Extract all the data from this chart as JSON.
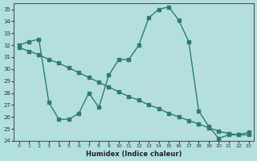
{
  "xlabel": "Humidex (Indice chaleur)",
  "line1_x": [
    0,
    1,
    2,
    3,
    4,
    5,
    6,
    7,
    8,
    9,
    10,
    11,
    12,
    13,
    14,
    15,
    16,
    17,
    18,
    19,
    20,
    21,
    22,
    23
  ],
  "line1_y": [
    32.0,
    32.3,
    32.5,
    27.2,
    25.8,
    25.8,
    26.3,
    28.0,
    26.8,
    29.5,
    30.8,
    30.8,
    32.0,
    34.3,
    35.0,
    35.2,
    34.1,
    32.3,
    26.5,
    25.2,
    24.2,
    24.5,
    24.5,
    24.7
  ],
  "line2_x": [
    0,
    1,
    2,
    3,
    4,
    5,
    6,
    7,
    8,
    9,
    10,
    11,
    12,
    13,
    14,
    15,
    16,
    17,
    18,
    19,
    20,
    21,
    22,
    23
  ],
  "line2_y": [
    31.8,
    31.5,
    31.2,
    30.8,
    30.5,
    30.1,
    29.7,
    29.3,
    28.9,
    28.5,
    28.1,
    27.7,
    27.4,
    27.0,
    26.7,
    26.3,
    26.0,
    25.7,
    25.4,
    25.1,
    24.8,
    24.6,
    24.5,
    24.5
  ],
  "line_color": "#2e7d6e",
  "bg_color": "#b2e0e0",
  "grid_color": "#c8d8d8",
  "ylim": [
    24,
    35.5
  ],
  "xlim": [
    -0.5,
    23.5
  ],
  "yticks": [
    24,
    25,
    26,
    27,
    28,
    29,
    30,
    31,
    32,
    33,
    34,
    35
  ],
  "xticks": [
    0,
    1,
    2,
    3,
    4,
    5,
    6,
    7,
    8,
    9,
    10,
    11,
    12,
    13,
    14,
    15,
    16,
    17,
    18,
    19,
    20,
    21,
    22,
    23
  ]
}
